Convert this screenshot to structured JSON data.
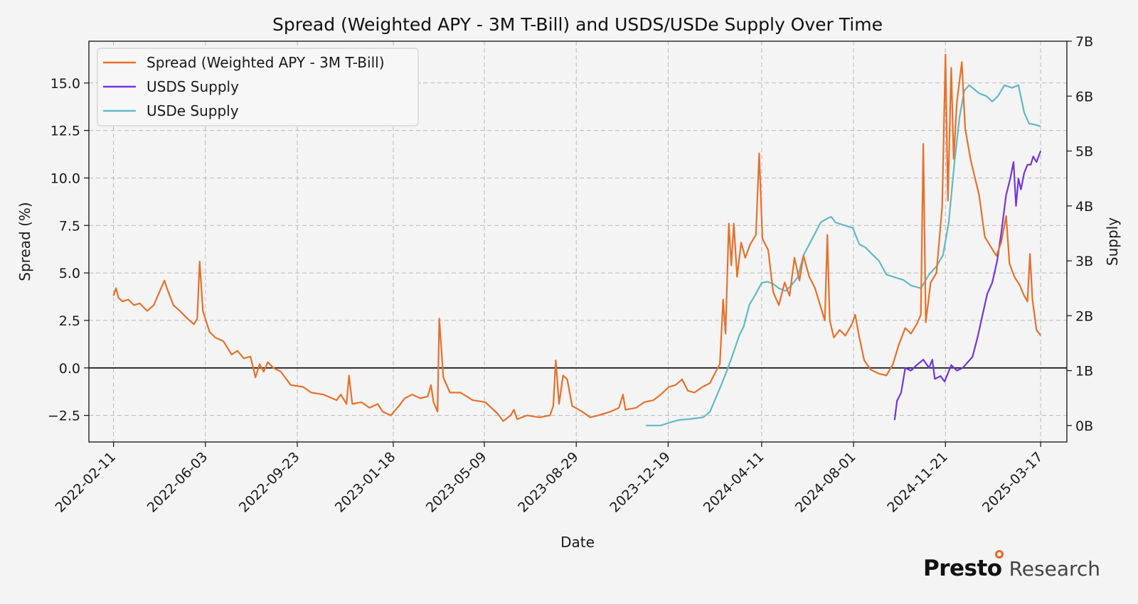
{
  "chart_data": {
    "type": "line",
    "title": "Spread (Weighted APY - 3M T-Bill) and USDS/USDe Supply Over Time",
    "xlabel": "Date",
    "ylabel_left": "Spread (%)",
    "ylabel_right": "Supply",
    "x_range": [
      "2022-01-12",
      "2025-04-18"
    ],
    "ylim_left": [
      -3.9,
      17.2
    ],
    "ylim_right": [
      -0.3,
      7.0
    ],
    "x_ticks": [
      "2022-02-11",
      "2022-06-03",
      "2022-09-23",
      "2023-01-18",
      "2023-05-09",
      "2023-08-29",
      "2023-12-19",
      "2024-04-11",
      "2024-08-01",
      "2024-11-21",
      "2025-03-17"
    ],
    "y_ticks_left": [
      -2.5,
      0.0,
      2.5,
      5.0,
      7.5,
      10.0,
      12.5,
      15.0
    ],
    "y_tick_labels_left": [
      "−2.5",
      "0.0",
      "2.5",
      "5.0",
      "7.5",
      "10.0",
      "12.5",
      "15.0"
    ],
    "y_ticks_right": [
      0,
      1,
      2,
      3,
      4,
      5,
      6,
      7
    ],
    "y_tick_labels_right": [
      "0B",
      "1B",
      "2B",
      "3B",
      "4B",
      "5B",
      "6B",
      "7B"
    ],
    "grid": true,
    "legend_position": "top-left",
    "zero_line": 0,
    "series": [
      {
        "name": "Spread (Weighted APY - 3M T-Bill)",
        "axis": "left",
        "color": "#e8702a",
        "points": [
          [
            "2022-02-11",
            3.8
          ],
          [
            "2022-02-14",
            4.2
          ],
          [
            "2022-02-17",
            3.7
          ],
          [
            "2022-02-22",
            3.5
          ],
          [
            "2022-03-01",
            3.6
          ],
          [
            "2022-03-08",
            3.3
          ],
          [
            "2022-03-15",
            3.4
          ],
          [
            "2022-03-24",
            3.0
          ],
          [
            "2022-04-01",
            3.3
          ],
          [
            "2022-04-08",
            4.0
          ],
          [
            "2022-04-14",
            4.6
          ],
          [
            "2022-04-18",
            4.1
          ],
          [
            "2022-04-25",
            3.3
          ],
          [
            "2022-05-03",
            3.0
          ],
          [
            "2022-05-12",
            2.6
          ],
          [
            "2022-05-20",
            2.3
          ],
          [
            "2022-05-24",
            2.6
          ],
          [
            "2022-05-27",
            5.6
          ],
          [
            "2022-05-31",
            3.0
          ],
          [
            "2022-06-08",
            1.9
          ],
          [
            "2022-06-15",
            1.6
          ],
          [
            "2022-06-25",
            1.4
          ],
          [
            "2022-07-05",
            0.7
          ],
          [
            "2022-07-12",
            0.9
          ],
          [
            "2022-07-20",
            0.5
          ],
          [
            "2022-07-28",
            0.6
          ],
          [
            "2022-08-03",
            -0.5
          ],
          [
            "2022-08-08",
            0.2
          ],
          [
            "2022-08-13",
            -0.2
          ],
          [
            "2022-08-18",
            0.3
          ],
          [
            "2022-08-25",
            0.0
          ],
          [
            "2022-09-03",
            -0.2
          ],
          [
            "2022-09-15",
            -0.9
          ],
          [
            "2022-09-30",
            -1.0
          ],
          [
            "2022-10-10",
            -1.3
          ],
          [
            "2022-10-25",
            -1.4
          ],
          [
            "2022-11-10",
            -1.7
          ],
          [
            "2022-11-15",
            -1.4
          ],
          [
            "2022-11-22",
            -1.9
          ],
          [
            "2022-11-25",
            -0.4
          ],
          [
            "2022-11-29",
            -1.9
          ],
          [
            "2022-12-10",
            -1.8
          ],
          [
            "2022-12-20",
            -2.1
          ],
          [
            "2022-12-30",
            -1.9
          ],
          [
            "2023-01-05",
            -2.3
          ],
          [
            "2023-01-15",
            -2.5
          ],
          [
            "2023-01-25",
            -2.0
          ],
          [
            "2023-02-01",
            -1.6
          ],
          [
            "2023-02-10",
            -1.4
          ],
          [
            "2023-02-20",
            -1.6
          ],
          [
            "2023-03-01",
            -1.5
          ],
          [
            "2023-03-05",
            -0.9
          ],
          [
            "2023-03-08",
            -1.8
          ],
          [
            "2023-03-13",
            -2.3
          ],
          [
            "2023-03-15",
            2.6
          ],
          [
            "2023-03-20",
            -0.5
          ],
          [
            "2023-03-28",
            -1.3
          ],
          [
            "2023-04-10",
            -1.3
          ],
          [
            "2023-04-25",
            -1.7
          ],
          [
            "2023-05-10",
            -1.8
          ],
          [
            "2023-05-25",
            -2.4
          ],
          [
            "2023-06-01",
            -2.8
          ],
          [
            "2023-06-10",
            -2.5
          ],
          [
            "2023-06-14",
            -2.2
          ],
          [
            "2023-06-18",
            -2.7
          ],
          [
            "2023-06-30",
            -2.5
          ],
          [
            "2023-07-15",
            -2.6
          ],
          [
            "2023-07-28",
            -2.5
          ],
          [
            "2023-08-01",
            -2.0
          ],
          [
            "2023-08-04",
            0.4
          ],
          [
            "2023-08-08",
            -1.9
          ],
          [
            "2023-08-13",
            -0.4
          ],
          [
            "2023-08-18",
            -0.6
          ],
          [
            "2023-08-24",
            -2.0
          ],
          [
            "2023-09-05",
            -2.3
          ],
          [
            "2023-09-15",
            -2.6
          ],
          [
            "2023-09-25",
            -2.5
          ],
          [
            "2023-10-10",
            -2.3
          ],
          [
            "2023-10-20",
            -2.1
          ],
          [
            "2023-10-25",
            -1.4
          ],
          [
            "2023-10-28",
            -2.2
          ],
          [
            "2023-11-10",
            -2.1
          ],
          [
            "2023-11-20",
            -1.8
          ],
          [
            "2023-12-01",
            -1.7
          ],
          [
            "2023-12-10",
            -1.4
          ],
          [
            "2023-12-20",
            -1.0
          ],
          [
            "2023-12-28",
            -0.9
          ],
          [
            "2024-01-05",
            -0.6
          ],
          [
            "2024-01-12",
            -1.2
          ],
          [
            "2024-01-20",
            -1.3
          ],
          [
            "2024-01-30",
            -1.0
          ],
          [
            "2024-02-08",
            -0.8
          ],
          [
            "2024-02-15",
            -0.2
          ],
          [
            "2024-02-20",
            0.2
          ],
          [
            "2024-02-24",
            3.6
          ],
          [
            "2024-02-27",
            1.8
          ],
          [
            "2024-03-02",
            7.6
          ],
          [
            "2024-03-05",
            5.4
          ],
          [
            "2024-03-08",
            7.6
          ],
          [
            "2024-03-12",
            4.8
          ],
          [
            "2024-03-17",
            6.6
          ],
          [
            "2024-03-22",
            5.8
          ],
          [
            "2024-03-28",
            6.5
          ],
          [
            "2024-04-04",
            7.0
          ],
          [
            "2024-04-08",
            11.3
          ],
          [
            "2024-04-12",
            6.8
          ],
          [
            "2024-04-19",
            6.2
          ],
          [
            "2024-04-25",
            4.0
          ],
          [
            "2024-05-02",
            3.3
          ],
          [
            "2024-05-09",
            4.5
          ],
          [
            "2024-05-15",
            3.8
          ],
          [
            "2024-05-21",
            5.8
          ],
          [
            "2024-05-27",
            4.6
          ],
          [
            "2024-06-01",
            5.9
          ],
          [
            "2024-06-08",
            4.8
          ],
          [
            "2024-06-15",
            4.2
          ],
          [
            "2024-06-22",
            3.2
          ],
          [
            "2024-06-27",
            2.5
          ],
          [
            "2024-06-30",
            7.0
          ],
          [
            "2024-07-03",
            2.5
          ],
          [
            "2024-07-08",
            1.6
          ],
          [
            "2024-07-15",
            2.0
          ],
          [
            "2024-07-22",
            1.7
          ],
          [
            "2024-07-30",
            2.3
          ],
          [
            "2024-08-03",
            2.8
          ],
          [
            "2024-08-08",
            1.6
          ],
          [
            "2024-08-14",
            0.4
          ],
          [
            "2024-08-22",
            -0.1
          ],
          [
            "2024-09-01",
            -0.3
          ],
          [
            "2024-09-10",
            -0.4
          ],
          [
            "2024-09-18",
            0.2
          ],
          [
            "2024-09-25",
            1.2
          ],
          [
            "2024-10-03",
            2.1
          ],
          [
            "2024-10-10",
            1.8
          ],
          [
            "2024-10-17",
            2.3
          ],
          [
            "2024-10-22",
            2.8
          ],
          [
            "2024-10-25",
            11.8
          ],
          [
            "2024-10-28",
            2.4
          ],
          [
            "2024-11-03",
            4.5
          ],
          [
            "2024-11-10",
            5.0
          ],
          [
            "2024-11-17",
            8.5
          ],
          [
            "2024-11-21",
            16.5
          ],
          [
            "2024-11-24",
            8.8
          ],
          [
            "2024-11-28",
            15.8
          ],
          [
            "2024-12-01",
            11.0
          ],
          [
            "2024-12-05",
            14.0
          ],
          [
            "2024-12-11",
            16.1
          ],
          [
            "2024-12-15",
            12.6
          ],
          [
            "2024-12-22",
            10.9
          ],
          [
            "2025-01-01",
            9.1
          ],
          [
            "2025-01-08",
            6.9
          ],
          [
            "2025-01-15",
            6.4
          ],
          [
            "2025-01-22",
            5.9
          ],
          [
            "2025-01-28",
            6.6
          ],
          [
            "2025-02-03",
            8.0
          ],
          [
            "2025-02-07",
            5.5
          ],
          [
            "2025-02-13",
            4.8
          ],
          [
            "2025-02-19",
            4.4
          ],
          [
            "2025-02-25",
            3.8
          ],
          [
            "2025-03-01",
            3.5
          ],
          [
            "2025-03-04",
            6.0
          ],
          [
            "2025-03-07",
            3.6
          ],
          [
            "2025-03-12",
            2.0
          ],
          [
            "2025-03-17",
            1.7
          ]
        ]
      },
      {
        "name": "USDS Supply",
        "axis": "right",
        "color": "#7435e0",
        "points": [
          [
            "2024-09-20",
            0.1
          ],
          [
            "2024-09-23",
            0.45
          ],
          [
            "2024-09-28",
            0.6
          ],
          [
            "2024-10-03",
            1.05
          ],
          [
            "2024-10-10",
            1.0
          ],
          [
            "2024-10-17",
            1.1
          ],
          [
            "2024-10-25",
            1.2
          ],
          [
            "2024-11-01",
            1.05
          ],
          [
            "2024-11-05",
            1.2
          ],
          [
            "2024-11-08",
            0.85
          ],
          [
            "2024-11-15",
            0.9
          ],
          [
            "2024-11-20",
            0.8
          ],
          [
            "2024-11-28",
            1.1
          ],
          [
            "2024-12-05",
            1.0
          ],
          [
            "2024-12-12",
            1.05
          ],
          [
            "2024-12-18",
            1.15
          ],
          [
            "2024-12-24",
            1.25
          ],
          [
            "2024-12-30",
            1.6
          ],
          [
            "2025-01-05",
            2.0
          ],
          [
            "2025-01-11",
            2.4
          ],
          [
            "2025-01-17",
            2.6
          ],
          [
            "2025-01-23",
            3.0
          ],
          [
            "2025-01-28",
            3.5
          ],
          [
            "2025-02-03",
            4.2
          ],
          [
            "2025-02-08",
            4.5
          ],
          [
            "2025-02-12",
            4.8
          ],
          [
            "2025-02-15",
            4.0
          ],
          [
            "2025-02-18",
            4.5
          ],
          [
            "2025-02-21",
            4.3
          ],
          [
            "2025-02-25",
            4.6
          ],
          [
            "2025-03-01",
            4.75
          ],
          [
            "2025-03-05",
            4.75
          ],
          [
            "2025-03-08",
            4.9
          ],
          [
            "2025-03-12",
            4.8
          ],
          [
            "2025-03-17",
            5.0
          ]
        ]
      },
      {
        "name": "USDe Supply",
        "axis": "right",
        "color": "#62b9c3",
        "points": [
          [
            "2023-11-22",
            0.0
          ],
          [
            "2023-12-10",
            0.0
          ],
          [
            "2023-12-20",
            0.05
          ],
          [
            "2024-01-01",
            0.1
          ],
          [
            "2024-01-15",
            0.12
          ],
          [
            "2024-01-31",
            0.15
          ],
          [
            "2024-02-08",
            0.25
          ],
          [
            "2024-02-15",
            0.5
          ],
          [
            "2024-02-22",
            0.75
          ],
          [
            "2024-03-01",
            1.05
          ],
          [
            "2024-03-08",
            1.35
          ],
          [
            "2024-03-15",
            1.65
          ],
          [
            "2024-03-20",
            1.8
          ],
          [
            "2024-03-27",
            2.2
          ],
          [
            "2024-04-04",
            2.4
          ],
          [
            "2024-04-11",
            2.6
          ],
          [
            "2024-04-18",
            2.62
          ],
          [
            "2024-04-25",
            2.58
          ],
          [
            "2024-05-02",
            2.5
          ],
          [
            "2024-05-10",
            2.45
          ],
          [
            "2024-05-17",
            2.55
          ],
          [
            "2024-05-25",
            2.7
          ],
          [
            "2024-06-01",
            3.1
          ],
          [
            "2024-06-08",
            3.3
          ],
          [
            "2024-06-15",
            3.5
          ],
          [
            "2024-06-22",
            3.7
          ],
          [
            "2024-07-01",
            3.78
          ],
          [
            "2024-07-05",
            3.8
          ],
          [
            "2024-07-10",
            3.7
          ],
          [
            "2024-07-20",
            3.65
          ],
          [
            "2024-07-31",
            3.6
          ],
          [
            "2024-08-08",
            3.3
          ],
          [
            "2024-08-15",
            3.25
          ],
          [
            "2024-08-25",
            3.1
          ],
          [
            "2024-09-01",
            3.0
          ],
          [
            "2024-09-10",
            2.75
          ],
          [
            "2024-09-20",
            2.7
          ],
          [
            "2024-10-01",
            2.65
          ],
          [
            "2024-10-10",
            2.55
          ],
          [
            "2024-10-22",
            2.5
          ],
          [
            "2024-11-01",
            2.75
          ],
          [
            "2024-11-10",
            2.9
          ],
          [
            "2024-11-18",
            3.1
          ],
          [
            "2024-11-25",
            3.7
          ],
          [
            "2024-12-02",
            4.8
          ],
          [
            "2024-12-08",
            5.6
          ],
          [
            "2024-12-14",
            6.1
          ],
          [
            "2024-12-20",
            6.2
          ],
          [
            "2025-01-01",
            6.05
          ],
          [
            "2025-01-10",
            6.0
          ],
          [
            "2025-01-17",
            5.9
          ],
          [
            "2025-01-24",
            6.0
          ],
          [
            "2025-02-01",
            6.2
          ],
          [
            "2025-02-10",
            6.15
          ],
          [
            "2025-02-18",
            6.2
          ],
          [
            "2025-02-25",
            5.7
          ],
          [
            "2025-03-03",
            5.5
          ],
          [
            "2025-03-10",
            5.48
          ],
          [
            "2025-03-17",
            5.45
          ]
        ]
      }
    ]
  },
  "brand": {
    "name": "Presto",
    "subtitle": "Research",
    "accent_color": "#e8652a"
  }
}
